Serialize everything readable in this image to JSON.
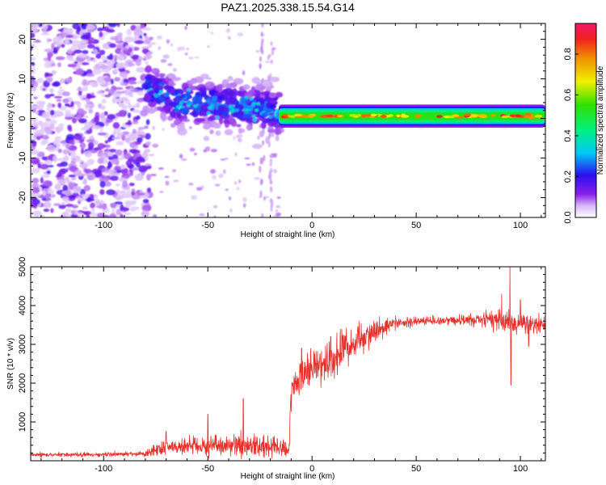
{
  "title": "PAZ1.2025.338.15.54.G14",
  "chart_data": [
    {
      "type": "heatmap",
      "name": "spectrogram",
      "xlabel": "Height of straight line (km)",
      "ylabel": "Frequency (Hz)",
      "xlim": [
        -135,
        112
      ],
      "ylim": [
        -25,
        24
      ],
      "xticks": [
        -100,
        -50,
        0,
        50,
        100
      ],
      "xtick_labels": [
        "-100",
        "-50",
        "0",
        "50",
        "100"
      ],
      "yticks": [
        -20,
        -10,
        0,
        10,
        20
      ],
      "ytick_labels": [
        "-20",
        "-10",
        "0",
        "10",
        "20"
      ],
      "colorbar": {
        "label": "Normalized spectral amplitude",
        "range": [
          0,
          0.95
        ],
        "ticks": [
          0.0,
          0.2,
          0.4,
          0.6,
          0.8
        ],
        "tick_labels": [
          "0.0",
          "0.2",
          "0.4",
          "0.6",
          "0.8"
        ]
      },
      "features": {
        "noise_region": [
          -135,
          -80
        ],
        "spread_region": [
          -80,
          -15
        ],
        "spread_center_hz": [
          [
            -78,
            8
          ],
          [
            -65,
            4
          ],
          [
            -50,
            4
          ],
          [
            -35,
            3
          ],
          [
            -20,
            2
          ],
          [
            -15,
            1.5
          ]
        ],
        "carrier_start_km": -16,
        "carrier_freq_hz": 0.6,
        "carrier_halfwidth_hz": 2.0
      }
    },
    {
      "type": "line",
      "name": "snr",
      "xlabel": "Height of straight line (km)",
      "ylabel": "SNR (10 * v/v)",
      "xlim": [
        -135,
        112
      ],
      "ylim": [
        0,
        5000
      ],
      "xticks": [
        -100,
        -50,
        0,
        50,
        100
      ],
      "xtick_labels": [
        "-100",
        "-50",
        "0",
        "50",
        "100"
      ],
      "yticks": [
        1000,
        2000,
        3000,
        4000,
        5000
      ],
      "ytick_labels": [
        "1000",
        "2000",
        "3000",
        "4000",
        "5000"
      ],
      "series": [
        {
          "name": "SNR",
          "color": "#e8302a",
          "trend": [
            [
              -135,
              150
            ],
            [
              -80,
              170
            ],
            [
              -70,
              350
            ],
            [
              -40,
              400
            ],
            [
              -20,
              380
            ],
            [
              -11,
              320
            ],
            [
              -10,
              1800
            ],
            [
              -5,
              2250
            ],
            [
              0,
              2450
            ],
            [
              10,
              2700
            ],
            [
              20,
              3050
            ],
            [
              30,
              3350
            ],
            [
              40,
              3530
            ],
            [
              50,
              3600
            ],
            [
              70,
              3620
            ],
            [
              90,
              3650
            ],
            [
              100,
              3500
            ],
            [
              112,
              3500
            ]
          ],
          "noise_amp": [
            [
              -135,
              45
            ],
            [
              -80,
              60
            ],
            [
              -75,
              160
            ],
            [
              -40,
              230
            ],
            [
              -30,
              260
            ],
            [
              -11,
              200
            ],
            [
              -10,
              420
            ],
            [
              10,
              480
            ],
            [
              25,
              300
            ],
            [
              40,
              140
            ],
            [
              60,
              90
            ],
            [
              80,
              150
            ],
            [
              90,
              280
            ],
            [
              100,
              270
            ],
            [
              112,
              170
            ]
          ],
          "spikes": [
            [
              -33,
              1600
            ],
            [
              -50,
              1200
            ],
            [
              -70,
              760
            ],
            [
              -5,
              2900
            ],
            [
              9,
              3200
            ],
            [
              95,
              5100
            ],
            [
              95.5,
              1950
            ],
            [
              91,
              4300
            ],
            [
              100,
              4150
            ],
            [
              104,
              2950
            ]
          ]
        }
      ]
    }
  ]
}
